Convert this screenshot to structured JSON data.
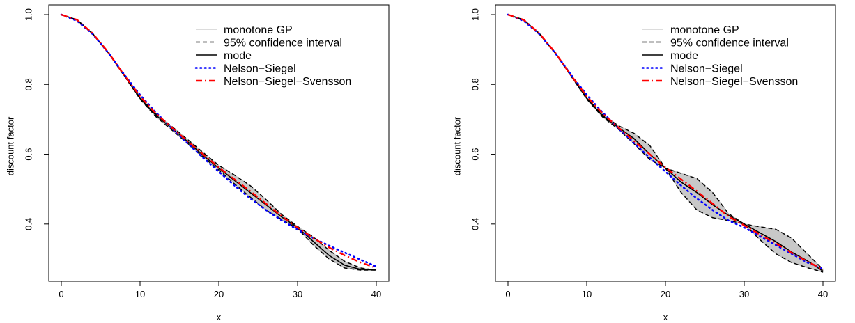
{
  "chart_data": [
    {
      "type": "line",
      "panel": "left",
      "xlabel": "x",
      "ylabel": "discount factor",
      "xlim": [
        0,
        40
      ],
      "ylim": [
        0.27,
        1.0
      ],
      "xticks": [
        0,
        10,
        20,
        30,
        40
      ],
      "yticks": [
        0.4,
        0.6,
        0.8,
        1.0
      ],
      "xtick_labels": [
        "0",
        "10",
        "20",
        "30",
        "40"
      ],
      "ytick_labels": [
        "0.4",
        "0.6",
        "0.8",
        "1.0"
      ],
      "grid": false,
      "legend": {
        "position": "top-right",
        "entries": [
          {
            "label": "monotone GP",
            "color": "#c8c8c8",
            "style": "solid"
          },
          {
            "label": "95% confidence interval",
            "color": "#000000",
            "style": "dashed"
          },
          {
            "label": "mode",
            "color": "#000000",
            "style": "solid"
          },
          {
            "label": "Nelson−Siegel",
            "color": "#0000ff",
            "style": "dotted"
          },
          {
            "label": "Nelson−Siegel−Svensson",
            "color": "#ff0000",
            "style": "dashdot"
          }
        ]
      },
      "series": [
        {
          "name": "mode",
          "x": [
            0,
            2,
            4,
            6,
            8,
            10,
            12,
            14,
            16,
            18,
            20,
            22,
            24,
            26,
            28,
            30,
            32,
            34,
            36,
            38,
            40
          ],
          "values": [
            1.0,
            0.985,
            0.945,
            0.89,
            0.825,
            0.76,
            0.712,
            0.675,
            0.637,
            0.597,
            0.56,
            0.525,
            0.49,
            0.455,
            0.42,
            0.39,
            0.35,
            0.31,
            0.282,
            0.27,
            0.268
          ]
        },
        {
          "name": "95% confidence interval (upper)",
          "x": [
            0,
            2,
            4,
            6,
            8,
            10,
            12,
            14,
            16,
            18,
            20,
            22,
            24,
            26,
            28,
            30,
            32,
            34,
            36,
            38,
            40
          ],
          "values": [
            1.0,
            0.985,
            0.946,
            0.891,
            0.826,
            0.762,
            0.716,
            0.68,
            0.643,
            0.605,
            0.568,
            0.54,
            0.51,
            0.47,
            0.427,
            0.393,
            0.363,
            0.325,
            0.293,
            0.274,
            0.268
          ]
        },
        {
          "name": "95% confidence interval (lower)",
          "x": [
            0,
            2,
            4,
            6,
            8,
            10,
            12,
            14,
            16,
            18,
            20,
            22,
            24,
            26,
            28,
            30,
            32,
            34,
            36,
            38,
            40
          ],
          "values": [
            1.0,
            0.984,
            0.944,
            0.889,
            0.824,
            0.758,
            0.708,
            0.67,
            0.632,
            0.592,
            0.555,
            0.515,
            0.477,
            0.44,
            0.413,
            0.387,
            0.34,
            0.3,
            0.274,
            0.268,
            0.268
          ]
        },
        {
          "name": "Nelson−Siegel",
          "x": [
            0,
            2,
            4,
            6,
            8,
            10,
            12,
            14,
            16,
            18,
            20,
            22,
            24,
            26,
            28,
            30,
            32,
            34,
            36,
            38,
            40
          ],
          "values": [
            1.0,
            0.982,
            0.944,
            0.89,
            0.828,
            0.77,
            0.72,
            0.675,
            0.632,
            0.59,
            0.55,
            0.51,
            0.473,
            0.44,
            0.41,
            0.384,
            0.36,
            0.338,
            0.318,
            0.298,
            0.278
          ]
        },
        {
          "name": "Nelson−Siegel−Svensson",
          "x": [
            0,
            2,
            4,
            6,
            8,
            10,
            12,
            14,
            16,
            18,
            20,
            22,
            24,
            26,
            28,
            30,
            32,
            34,
            36,
            38,
            40
          ],
          "values": [
            1.0,
            0.985,
            0.946,
            0.891,
            0.826,
            0.766,
            0.717,
            0.677,
            0.638,
            0.6,
            0.562,
            0.528,
            0.494,
            0.458,
            0.422,
            0.39,
            0.36,
            0.333,
            0.31,
            0.29,
            0.274
          ]
        }
      ]
    },
    {
      "type": "line",
      "panel": "right",
      "xlabel": "x",
      "ylabel": "discount factor",
      "xlim": [
        0,
        40
      ],
      "ylim": [
        0.27,
        1.0
      ],
      "xticks": [
        0,
        10,
        20,
        30,
        40
      ],
      "yticks": [
        0.4,
        0.6,
        0.8,
        1.0
      ],
      "xtick_labels": [
        "0",
        "10",
        "20",
        "30",
        "40"
      ],
      "ytick_labels": [
        "0.4",
        "0.6",
        "0.8",
        "1.0"
      ],
      "grid": false,
      "legend": {
        "position": "top-right",
        "entries": [
          {
            "label": "monotone GP",
            "color": "#c8c8c8",
            "style": "solid"
          },
          {
            "label": "95% confidence interval",
            "color": "#000000",
            "style": "dashed"
          },
          {
            "label": "mode",
            "color": "#000000",
            "style": "solid"
          },
          {
            "label": "Nelson−Siegel",
            "color": "#0000ff",
            "style": "dotted"
          },
          {
            "label": "Nelson−Siegel−Svensson",
            "color": "#ff0000",
            "style": "dashdot"
          }
        ]
      },
      "series": [
        {
          "name": "mode",
          "x": [
            0,
            2,
            4,
            6,
            8,
            10,
            12,
            14,
            16,
            18,
            20,
            22,
            24,
            26,
            28,
            30,
            32,
            34,
            36,
            38,
            40
          ],
          "values": [
            1.0,
            0.985,
            0.945,
            0.89,
            0.825,
            0.76,
            0.71,
            0.677,
            0.645,
            0.6,
            0.56,
            0.52,
            0.49,
            0.455,
            0.425,
            0.4,
            0.375,
            0.35,
            0.32,
            0.295,
            0.265
          ]
        },
        {
          "name": "95% confidence interval (upper)",
          "x": [
            0,
            2,
            4,
            6,
            8,
            10,
            12,
            14,
            16,
            18,
            20,
            22,
            24,
            26,
            28,
            30,
            32,
            34,
            36,
            38,
            40
          ],
          "values": [
            1.0,
            0.985,
            0.946,
            0.891,
            0.826,
            0.762,
            0.713,
            0.682,
            0.66,
            0.625,
            0.56,
            0.545,
            0.53,
            0.49,
            0.43,
            0.4,
            0.392,
            0.385,
            0.36,
            0.315,
            0.27
          ]
        },
        {
          "name": "95% confidence interval (lower)",
          "x": [
            0,
            2,
            4,
            6,
            8,
            10,
            12,
            14,
            16,
            18,
            20,
            22,
            24,
            26,
            28,
            30,
            32,
            34,
            36,
            38,
            40
          ],
          "values": [
            1.0,
            0.984,
            0.944,
            0.889,
            0.824,
            0.758,
            0.707,
            0.672,
            0.63,
            0.585,
            0.56,
            0.49,
            0.44,
            0.418,
            0.41,
            0.4,
            0.355,
            0.315,
            0.29,
            0.275,
            0.262
          ]
        },
        {
          "name": "Nelson−Siegel",
          "x": [
            0,
            2,
            4,
            6,
            8,
            10,
            12,
            14,
            16,
            18,
            20,
            22,
            24,
            26,
            28,
            30,
            32,
            34,
            36,
            38,
            40
          ],
          "values": [
            1.0,
            0.982,
            0.944,
            0.89,
            0.828,
            0.77,
            0.72,
            0.675,
            0.632,
            0.59,
            0.55,
            0.51,
            0.473,
            0.44,
            0.41,
            0.39,
            0.365,
            0.34,
            0.315,
            0.29,
            0.272
          ]
        },
        {
          "name": "Nelson−Siegel−Svensson",
          "x": [
            0,
            2,
            4,
            6,
            8,
            10,
            12,
            14,
            16,
            18,
            20,
            22,
            24,
            26,
            28,
            30,
            32,
            34,
            36,
            38,
            40
          ],
          "values": [
            1.0,
            0.985,
            0.946,
            0.891,
            0.826,
            0.766,
            0.717,
            0.677,
            0.638,
            0.6,
            0.562,
            0.528,
            0.494,
            0.458,
            0.422,
            0.396,
            0.37,
            0.345,
            0.318,
            0.293,
            0.27
          ]
        }
      ]
    }
  ]
}
